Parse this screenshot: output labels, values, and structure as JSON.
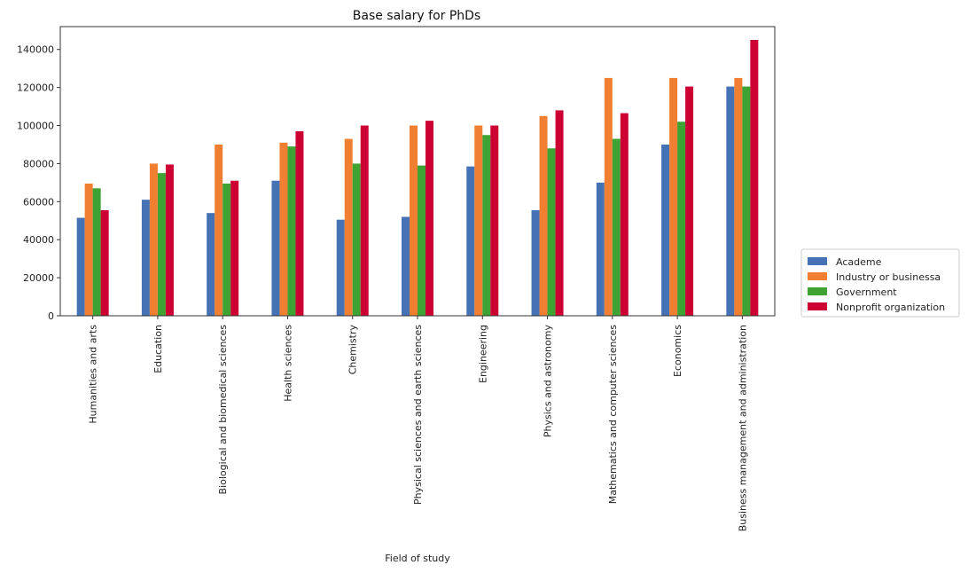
{
  "chart_data": {
    "type": "bar",
    "title": "Base salary for PhDs",
    "xlabel": "Field of study",
    "ylabel": "",
    "ylim": [
      0,
      152000
    ],
    "yticks": [
      0,
      20000,
      40000,
      60000,
      80000,
      100000,
      120000,
      140000
    ],
    "grid": false,
    "legend_position": "right",
    "categories": [
      "Humanities and arts",
      "Education",
      "Biological and biomedical sciences",
      "Health sciences",
      "Chemistry",
      "Physical sciences and earth sciences",
      "Engineering",
      "Physics and astronomy",
      "Mathematics and computer sciences",
      "Economics",
      "Business management and administration"
    ],
    "series": [
      {
        "name": "Academe",
        "color": "#4472b4",
        "values": [
          51500,
          61000,
          54000,
          71000,
          50500,
          52000,
          78500,
          55500,
          70000,
          90000,
          120500
        ]
      },
      {
        "name": "Industry or businessa",
        "color": "#f07f31",
        "values": [
          69500,
          80000,
          90000,
          91000,
          93000,
          100000,
          100000,
          105000,
          125000,
          125000,
          125000
        ]
      },
      {
        "name": "Government",
        "color": "#3ea332",
        "values": [
          67000,
          75000,
          69500,
          89000,
          80000,
          79000,
          95000,
          88000,
          93000,
          102000,
          120500
        ]
      },
      {
        "name": "Nonprofit organization",
        "color": "#cc0033",
        "values": [
          55500,
          79500,
          71000,
          97000,
          100000,
          102500,
          100000,
          108000,
          106500,
          120500,
          145000
        ]
      }
    ]
  }
}
